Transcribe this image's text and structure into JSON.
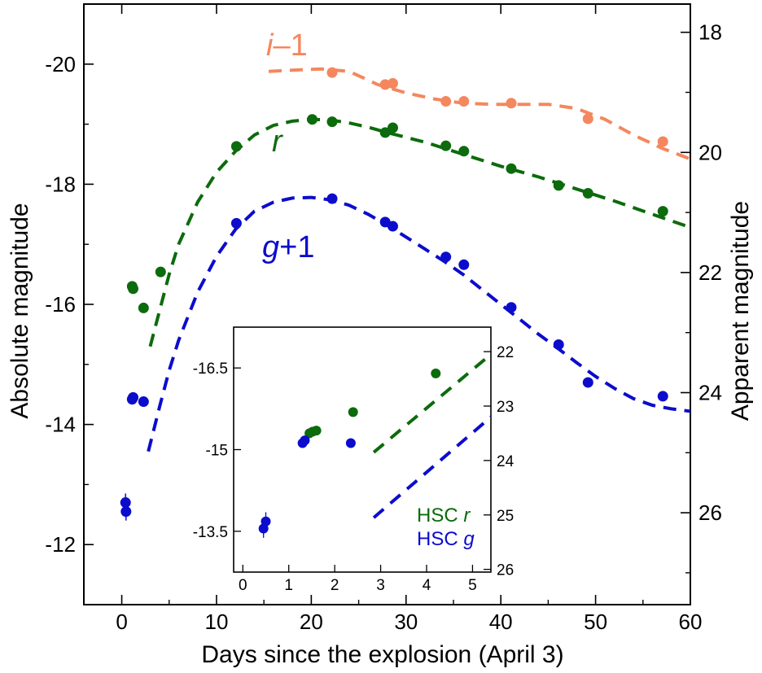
{
  "chart_data": {
    "type": "scatter",
    "xlabel": "Days since the explosion (April 3)",
    "ylabel_left": "Absolute magnitude",
    "ylabel_right": "Apparent magnitude",
    "xlim": [
      -4,
      60
    ],
    "ylim_abs": [
      -11,
      -21
    ],
    "ylim_app": [
      27.53,
      17.53
    ],
    "x_ticks": [
      "0",
      "10",
      "20",
      "30",
      "40",
      "50",
      "60"
    ],
    "y_ticks_left": [
      "-12",
      "-14",
      "-16",
      "-18",
      "-20"
    ],
    "y_ticks_right": [
      "18",
      "20",
      "22",
      "24",
      "26"
    ],
    "colors": {
      "i": "#f4875e",
      "r": "#0c6b0c",
      "g": "#0c0ccc"
    },
    "band_labels": {
      "i": {
        "letter": "i",
        "suffix": "–1"
      },
      "r": {
        "letter": "r",
        "suffix": ""
      },
      "g": {
        "letter": "g",
        "suffix": "+1"
      }
    },
    "series": [
      {
        "band": "i",
        "points": [
          [
            22.2,
            -19.86
          ],
          [
            27.8,
            -19.66
          ],
          [
            28.6,
            -19.68
          ],
          [
            34.2,
            -19.38
          ],
          [
            36.1,
            -19.38
          ],
          [
            41.1,
            -19.35
          ],
          [
            49.2,
            -19.09
          ],
          [
            57.1,
            -18.71
          ]
        ],
        "model": [
          [
            15.5,
            -19.88
          ],
          [
            18,
            -19.9
          ],
          [
            21,
            -19.92
          ],
          [
            24,
            -19.88
          ],
          [
            27,
            -19.66
          ],
          [
            30,
            -19.52
          ],
          [
            33,
            -19.42
          ],
          [
            36,
            -19.35
          ],
          [
            39,
            -19.33
          ],
          [
            42,
            -19.33
          ],
          [
            45,
            -19.33
          ],
          [
            48,
            -19.26
          ],
          [
            51,
            -19.08
          ],
          [
            54,
            -18.82
          ],
          [
            57,
            -18.6
          ],
          [
            60,
            -18.42
          ]
        ]
      },
      {
        "band": "r",
        "points": [
          [
            1.1,
            -16.3
          ],
          [
            1.2,
            -16.26
          ],
          [
            2.3,
            -15.94
          ],
          [
            4.1,
            -16.54
          ],
          [
            12.1,
            -18.63
          ],
          [
            20.1,
            -19.08
          ],
          [
            22.2,
            -19.04
          ],
          [
            27.8,
            -18.86
          ],
          [
            28.6,
            -18.94
          ],
          [
            34.2,
            -18.64
          ],
          [
            36.1,
            -18.55
          ],
          [
            41.1,
            -18.26
          ],
          [
            46.1,
            -17.98
          ],
          [
            49.2,
            -17.85
          ],
          [
            57.1,
            -17.55
          ]
        ],
        "model": [
          [
            3,
            -15.3
          ],
          [
            4,
            -15.9
          ],
          [
            5,
            -16.5
          ],
          [
            6,
            -17.0
          ],
          [
            8,
            -17.7
          ],
          [
            10,
            -18.2
          ],
          [
            12,
            -18.55
          ],
          [
            14,
            -18.82
          ],
          [
            16,
            -18.98
          ],
          [
            18,
            -19.05
          ],
          [
            20,
            -19.08
          ],
          [
            22,
            -19.07
          ],
          [
            24,
            -19.02
          ],
          [
            26,
            -18.95
          ],
          [
            28,
            -18.86
          ],
          [
            30,
            -18.78
          ],
          [
            32,
            -18.7
          ],
          [
            34,
            -18.6
          ],
          [
            36,
            -18.5
          ],
          [
            38,
            -18.4
          ],
          [
            40,
            -18.3
          ],
          [
            44,
            -18.12
          ],
          [
            48,
            -17.92
          ],
          [
            52,
            -17.72
          ],
          [
            56,
            -17.5
          ],
          [
            60,
            -17.28
          ]
        ]
      },
      {
        "band": "g",
        "points": [
          [
            0.4,
            -12.7
          ],
          [
            0.45,
            -12.55
          ],
          [
            1.1,
            -14.42
          ],
          [
            1.2,
            -14.45
          ],
          [
            2.3,
            -14.38
          ],
          [
            12.1,
            -17.35
          ],
          [
            22.2,
            -17.76
          ],
          [
            27.8,
            -17.37
          ],
          [
            28.6,
            -17.3
          ],
          [
            34.2,
            -16.79
          ],
          [
            36.1,
            -16.66
          ],
          [
            41.1,
            -15.95
          ],
          [
            46.1,
            -15.33
          ],
          [
            49.2,
            -14.7
          ],
          [
            57.1,
            -14.47
          ]
        ],
        "model": [
          [
            2.8,
            -13.55
          ],
          [
            4,
            -14.3
          ],
          [
            5,
            -14.9
          ],
          [
            6,
            -15.4
          ],
          [
            8,
            -16.2
          ],
          [
            10,
            -16.8
          ],
          [
            12,
            -17.25
          ],
          [
            14,
            -17.55
          ],
          [
            16,
            -17.7
          ],
          [
            18,
            -17.77
          ],
          [
            20,
            -17.78
          ],
          [
            22,
            -17.74
          ],
          [
            24,
            -17.65
          ],
          [
            26,
            -17.5
          ],
          [
            28,
            -17.32
          ],
          [
            30,
            -17.12
          ],
          [
            32,
            -16.92
          ],
          [
            34,
            -16.72
          ],
          [
            36,
            -16.5
          ],
          [
            38,
            -16.25
          ],
          [
            40,
            -16.0
          ],
          [
            42,
            -15.75
          ],
          [
            44,
            -15.5
          ],
          [
            46,
            -15.27
          ],
          [
            48,
            -15.03
          ],
          [
            50,
            -14.8
          ],
          [
            52,
            -14.6
          ],
          [
            54,
            -14.43
          ],
          [
            56,
            -14.32
          ],
          [
            58,
            -14.26
          ],
          [
            60,
            -14.22
          ]
        ]
      }
    ],
    "inset": {
      "xlim": [
        -0.2,
        5.4
      ],
      "ylim_abs": [
        -12.75,
        -17.25
      ],
      "ylim_app": [
        26.05,
        21.55
      ],
      "x_ticks": [
        "0",
        "1",
        "2",
        "3",
        "4",
        "5"
      ],
      "y_ticks_left": [
        "-13.5",
        "-15",
        "-16.5"
      ],
      "y_ticks_right": [
        "22",
        "23",
        "24",
        "25",
        "26"
      ],
      "legend": [
        {
          "band": "r",
          "text": "HSC ",
          "letter": "r"
        },
        {
          "band": "g",
          "text": "HSC ",
          "letter": "g"
        }
      ],
      "series": [
        {
          "band": "r",
          "points": [
            [
              1.45,
              -15.3
            ],
            [
              1.52,
              -15.33
            ],
            [
              1.6,
              -15.35
            ],
            [
              2.4,
              -15.69
            ],
            [
              4.2,
              -16.4
            ]
          ],
          "model": [
            [
              2.85,
              -14.95
            ],
            [
              5.4,
              -16.75
            ]
          ]
        },
        {
          "band": "g",
          "points": [
            [
              0.45,
              -13.55
            ],
            [
              0.5,
              -13.68
            ],
            [
              1.3,
              -15.12
            ],
            [
              1.35,
              -15.17
            ],
            [
              2.35,
              -15.12
            ]
          ],
          "model": [
            [
              2.85,
              -13.75
            ],
            [
              5.4,
              -15.6
            ]
          ]
        }
      ]
    }
  }
}
